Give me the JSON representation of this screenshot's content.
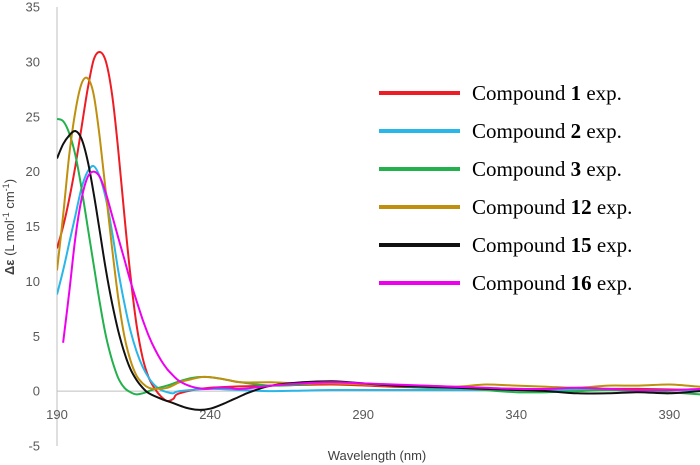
{
  "chart_data": {
    "type": "line",
    "title": "",
    "xlabel": "Wavelength (nm)",
    "ylabel": {
      "symbol": "Δε",
      "text": " (L mol",
      "sup1": "-1",
      "text2": " cm",
      "sup2": "-1",
      "close": ")"
    },
    "xlim": [
      190,
      400
    ],
    "ylim": [
      -5,
      35
    ],
    "xticks": [
      "190",
      "240",
      "290",
      "340",
      "390"
    ],
    "yticks": [
      "-5",
      "0",
      "5",
      "10",
      "15",
      "20",
      "25",
      "30",
      "35"
    ],
    "legend_position": "right",
    "series": [
      {
        "name": "Compound 1 exp.",
        "prefix": "Compound ",
        "num": "1",
        "suffix": " exp.",
        "color": "#ee1c24",
        "x": [
          190,
          192,
          194,
          196,
          198,
          200,
          202,
          204,
          206,
          208,
          210,
          212,
          214,
          216,
          218,
          220,
          222,
          224,
          226,
          228,
          230,
          240,
          260,
          280,
          300,
          320,
          340,
          360,
          380,
          400
        ],
        "y": [
          13,
          15,
          17.5,
          20.5,
          24,
          27.5,
          30.2,
          30.9,
          30,
          27,
          22,
          16,
          10.5,
          6,
          3,
          1.2,
          0.2,
          -0.5,
          -0.9,
          -0.7,
          -0.2,
          0.3,
          0.5,
          0.6,
          0.4,
          0.3,
          0.2,
          0.2,
          0.2,
          0.1
        ]
      },
      {
        "name": "Compound 2 exp.",
        "prefix": "Compound ",
        "num": "2",
        "suffix": " exp.",
        "color": "#29b6e8",
        "x": [
          190,
          192,
          194,
          196,
          198,
          200,
          202,
          204,
          206,
          208,
          210,
          212,
          214,
          216,
          218,
          220,
          222,
          224,
          226,
          228,
          230,
          240,
          250,
          260,
          270,
          280,
          300,
          320,
          340,
          360,
          380,
          400
        ],
        "y": [
          8.8,
          11,
          13.5,
          16,
          18.5,
          20,
          20.5,
          19.5,
          17.5,
          14.5,
          11,
          8,
          5.5,
          3.6,
          2.2,
          1.2,
          0.5,
          0.1,
          -0.1,
          -0.2,
          0,
          0.2,
          0.1,
          0,
          0.05,
          0.1,
          0.1,
          0.1,
          0.1,
          0.1,
          0.1,
          0.1
        ]
      },
      {
        "name": "Compound 3 exp.",
        "prefix": "Compound ",
        "num": "3",
        "suffix": " exp.",
        "color": "#22b14c",
        "x": [
          190,
          192,
          194,
          196,
          198,
          200,
          202,
          204,
          206,
          208,
          210,
          212,
          214,
          216,
          218,
          220,
          222,
          226,
          230,
          234,
          238,
          242,
          246,
          250,
          260,
          270,
          280,
          290,
          300,
          310,
          320,
          330,
          340,
          350,
          360,
          370,
          380,
          390,
          400
        ],
        "y": [
          24.8,
          24.6,
          23.5,
          21.5,
          18.5,
          15,
          11.5,
          8,
          5,
          2.8,
          1.2,
          0.3,
          -0.1,
          -0.3,
          -0.2,
          0,
          0.2,
          0.5,
          0.9,
          1.2,
          1.3,
          1.2,
          1,
          0.8,
          0.5,
          0.6,
          0.8,
          0.7,
          0.5,
          0.3,
          0.3,
          0.1,
          -0.1,
          -0.1,
          0,
          0.1,
          0,
          -0.1,
          -0.3
        ]
      },
      {
        "name": "Compound 12 exp.",
        "prefix": "Compound ",
        "num": "12",
        "suffix": " exp.",
        "color": "#bf8f0e",
        "x": [
          190,
          192,
          194,
          196,
          198,
          200,
          202,
          204,
          206,
          208,
          210,
          212,
          214,
          216,
          218,
          220,
          222,
          226,
          230,
          234,
          238,
          242,
          246,
          250,
          260,
          270,
          280,
          290,
          300,
          310,
          320,
          330,
          340,
          350,
          360,
          370,
          380,
          390,
          400
        ],
        "y": [
          11,
          16,
          21.5,
          25.5,
          28,
          28.5,
          27,
          23,
          18,
          13,
          8.5,
          5,
          2.8,
          1.4,
          0.7,
          0.3,
          0.2,
          0.3,
          0.8,
          1.1,
          1.3,
          1.2,
          1,
          0.8,
          0.8,
          0.7,
          0.7,
          0.6,
          0.5,
          0.5,
          0.4,
          0.6,
          0.5,
          0.4,
          0.3,
          0.5,
          0.5,
          0.6,
          0.4
        ]
      },
      {
        "name": "Compound 15 exp.",
        "prefix": "Compound ",
        "num": "15",
        "suffix": " exp.",
        "color": "#111111",
        "x": [
          190,
          192,
          194,
          196,
          198,
          200,
          202,
          204,
          206,
          208,
          210,
          212,
          214,
          216,
          218,
          220,
          224,
          228,
          232,
          236,
          240,
          244,
          248,
          252,
          256,
          260,
          270,
          280,
          290,
          300,
          310,
          320,
          330,
          340,
          350,
          360,
          370,
          380,
          390,
          400
        ],
        "y": [
          21.2,
          22.5,
          23.3,
          23.7,
          23,
          21,
          18,
          14.5,
          11,
          8,
          5.5,
          3.5,
          2,
          1,
          0.3,
          -0.2,
          -0.7,
          -1.1,
          -1.5,
          -1.7,
          -1.6,
          -1.2,
          -0.7,
          -0.2,
          0.2,
          0.5,
          0.8,
          0.9,
          0.7,
          0.5,
          0.4,
          0.3,
          0.2,
          0.1,
          0,
          -0.2,
          -0.2,
          -0.1,
          -0.2,
          0
        ]
      },
      {
        "name": "Compound 16 exp.",
        "prefix": "Compound ",
        "num": "16",
        "suffix": " exp.",
        "color": "#ee00ee",
        "x": [
          192,
          194,
          196,
          198,
          200,
          202,
          204,
          206,
          208,
          210,
          212,
          214,
          216,
          218,
          220,
          222,
          224,
          226,
          228,
          230,
          234,
          238,
          242,
          246,
          250,
          260,
          270,
          280,
          290,
          300,
          310,
          320,
          330,
          340,
          350,
          360,
          370,
          380,
          390,
          400
        ],
        "y": [
          4.4,
          9,
          14,
          17.5,
          19.5,
          20,
          19.5,
          18,
          16,
          14,
          12,
          10,
          8.2,
          6.5,
          5,
          3.8,
          2.8,
          2,
          1.4,
          0.9,
          0.4,
          0.2,
          0.3,
          0.3,
          0.2,
          0.5,
          0.7,
          0.8,
          0.7,
          0.6,
          0.5,
          0.4,
          0.3,
          0.2,
          0.2,
          0.3,
          0.2,
          0.1,
          0.1,
          0.2
        ]
      }
    ]
  }
}
